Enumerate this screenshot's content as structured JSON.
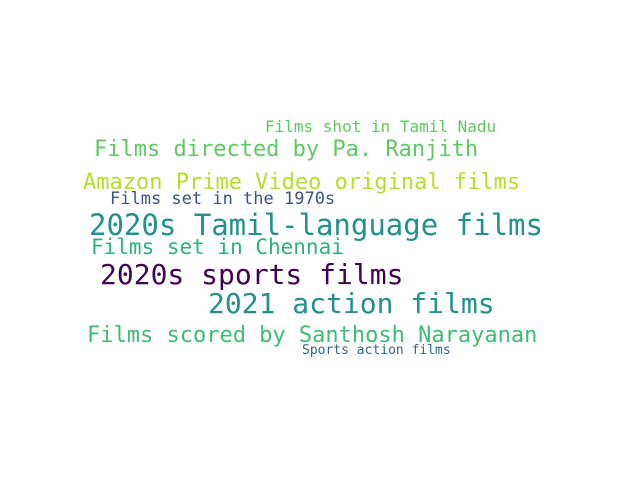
{
  "word_cloud": {
    "words": [
      {
        "text": "Films shot in Tamil Nadu",
        "color": "#5ec962"
      },
      {
        "text": "Films directed by Pa. Ranjith",
        "color": "#5ec962"
      },
      {
        "text": "Amazon Prime Video original films",
        "color": "#b5de2b"
      },
      {
        "text": "Films set in the 1970s",
        "color": "#3b528b"
      },
      {
        "text": "2020s Tamil-language films",
        "color": "#21918c"
      },
      {
        "text": "Films set in Chennai",
        "color": "#2db27d"
      },
      {
        "text": "2020s sports films",
        "color": "#440154"
      },
      {
        "text": "2021 action films",
        "color": "#21918c"
      },
      {
        "text": "Films scored by Santhosh Narayanan",
        "color": "#3fbc73"
      },
      {
        "text": "Sports action films",
        "color": "#33638d"
      }
    ]
  }
}
